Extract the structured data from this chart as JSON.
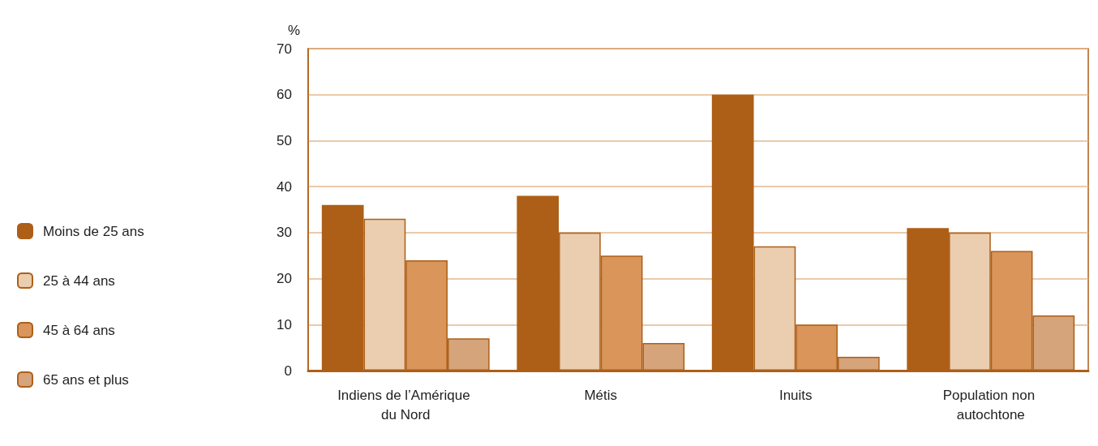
{
  "chart_data": {
    "type": "bar",
    "ylabel": "%",
    "categories": [
      "Indiens de l’Amérique du Nord",
      "Métis",
      "Inuits",
      "Population non autochtone"
    ],
    "series": [
      {
        "name": "Moins de 25 ans",
        "color": "#ad5f17",
        "values": [
          36,
          38,
          60,
          31
        ]
      },
      {
        "name": "25 à 44 ans",
        "color": "#ebcdb0",
        "values": [
          33,
          30,
          27,
          30
        ]
      },
      {
        "name": "45 à 64 ans",
        "color": "#d9955a",
        "values": [
          24,
          25,
          10,
          26
        ]
      },
      {
        "name": "65 ans et plus",
        "color": "#d6a47a",
        "values": [
          7,
          6,
          3,
          12
        ]
      }
    ],
    "ylim": [
      0,
      70
    ],
    "yticks": [
      0,
      10,
      20,
      30,
      40,
      50,
      60,
      70
    ],
    "grid": "y",
    "legend": "left"
  }
}
